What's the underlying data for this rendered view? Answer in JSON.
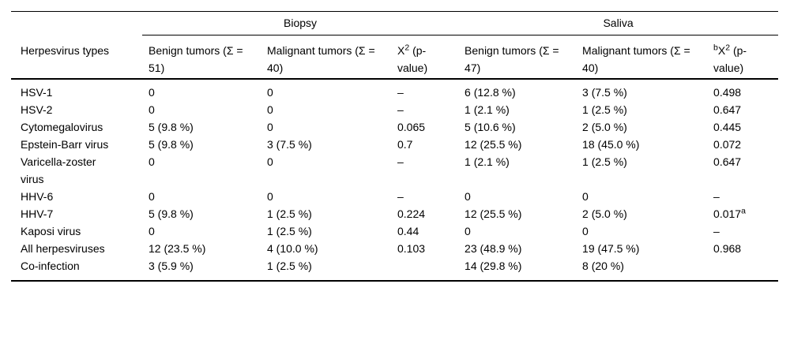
{
  "table": {
    "corner_header": "Herpesvirus types",
    "groups": {
      "biopsy": "Biopsy",
      "saliva": "Saliva"
    },
    "column_headers": {
      "biopsy_benign": "Benign tumors (Σ = 51)",
      "biopsy_malignant": "Malignant tumors (Σ = 40)",
      "biopsy_chi": {
        "pre_sup": "",
        "base": "X",
        "exp": "2",
        "rest": " (p-value)"
      },
      "saliva_benign": "Benign tumors (Σ = 47)",
      "saliva_malignant": "Malignant tumors (Σ = 40)",
      "saliva_chi": {
        "pre_sup": "b",
        "base": "X",
        "exp": "2",
        "rest": " (p-value)"
      }
    },
    "rows": [
      {
        "name": "HSV-1",
        "cells": [
          "0",
          "0",
          "–",
          "6 (12.8 %)",
          "3 (7.5 %)",
          "0.498"
        ]
      },
      {
        "name": "HSV-2",
        "cells": [
          "0",
          "0",
          "–",
          "1 (2.1 %)",
          "1 (2.5 %)",
          "0.647"
        ]
      },
      {
        "name": "Cytomegalovirus",
        "cells": [
          "5 (9.8 %)",
          "0",
          "0.065",
          "5 (10.6 %)",
          "2 (5.0 %)",
          "0.445"
        ]
      },
      {
        "name": "Epstein-Barr virus",
        "cells": [
          "5 (9.8 %)",
          "3 (7.5 %)",
          "0.7",
          "12 (25.5 %)",
          "18 (45.0 %)",
          "0.072"
        ]
      },
      {
        "name": "Varicella-zoster virus",
        "cells": [
          "0",
          "0",
          "–",
          "1 (2.1 %)",
          "1 (2.5 %)",
          "0.647"
        ]
      },
      {
        "name": "HHV-6",
        "cells": [
          "0",
          "0",
          "–",
          "0",
          "0",
          "–"
        ]
      },
      {
        "name": "HHV-7",
        "cells": [
          "5 (9.8 %)",
          "1 (2.5 %)",
          "0.224",
          "12 (25.5 %)",
          "2 (5.0 %)",
          {
            "v": "0.017",
            "sup": "a"
          }
        ]
      },
      {
        "name": "Kaposi virus",
        "cells": [
          "0",
          "1 (2.5 %)",
          "0.44",
          "0",
          "0",
          "–"
        ]
      },
      {
        "name": "All herpesviruses",
        "cells": [
          "12 (23.5 %)",
          "4 (10.0 %)",
          "0.103",
          "23 (48.9 %)",
          "19 (47.5 %)",
          "0.968"
        ]
      },
      {
        "name": "Co-infection",
        "cells": [
          "3 (5.9 %)",
          "1 (2.5 %)",
          "",
          "14 (29.8 %)",
          "8 (20 %)",
          ""
        ]
      }
    ]
  }
}
